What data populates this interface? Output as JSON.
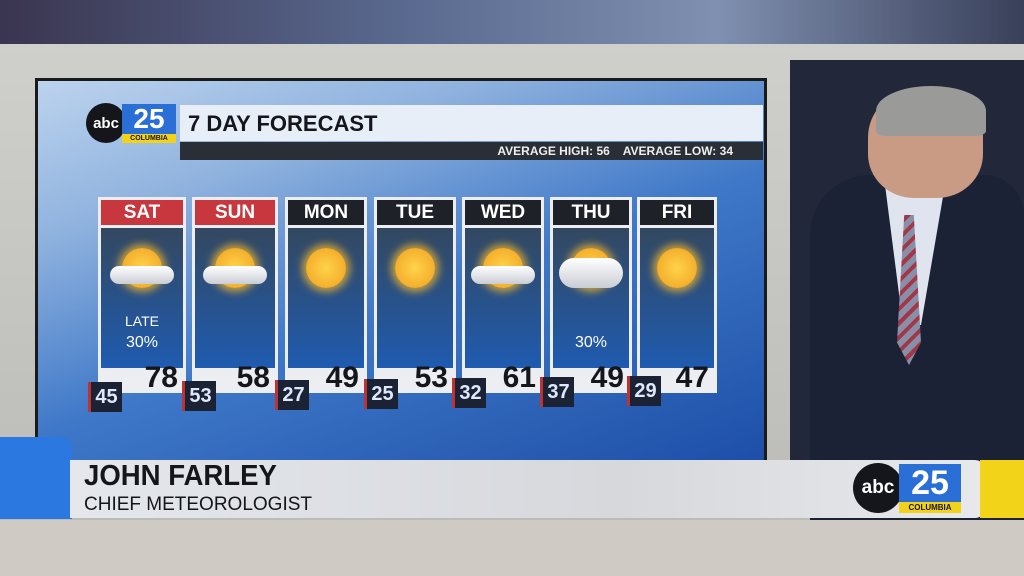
{
  "broadcast": {
    "logo": {
      "abc": "abc",
      "channel": "25",
      "city": "COLUMBIA"
    }
  },
  "forecast": {
    "title": "7 DAY FORECAST",
    "average_high": "AVERAGE HIGH: 56",
    "average_low": "AVERAGE LOW: 34",
    "days": [
      {
        "day": "SAT",
        "weekend": true,
        "icon": "partly-cloudy-icon",
        "note": "LATE",
        "precip": "30%",
        "high": "78",
        "low": "45"
      },
      {
        "day": "SUN",
        "weekend": true,
        "icon": "mostly-sunny-icon",
        "high": "58",
        "low": "53"
      },
      {
        "day": "MON",
        "weekend": false,
        "icon": "sunny-icon",
        "high": "49",
        "low": "27"
      },
      {
        "day": "TUE",
        "weekend": false,
        "icon": "sunny-icon",
        "high": "53",
        "low": "25"
      },
      {
        "day": "WED",
        "weekend": false,
        "icon": "mostly-sunny-icon",
        "high": "61",
        "low": "32"
      },
      {
        "day": "THU",
        "weekend": false,
        "icon": "mostly-cloudy-icon",
        "precip": "30%",
        "high": "49",
        "low": "37"
      },
      {
        "day": "FRI",
        "weekend": false,
        "icon": "sunny-icon",
        "high": "47",
        "low": "29"
      }
    ]
  },
  "lower_third": {
    "name": "JOHN FARLEY",
    "role": "CHIEF METEOROLOGIST"
  },
  "colors": {
    "weekend_header": "#c8373d",
    "weekday_header": "#1e2128",
    "brand_blue": "#2a6fd6",
    "brand_yellow": "#f3d21a"
  }
}
